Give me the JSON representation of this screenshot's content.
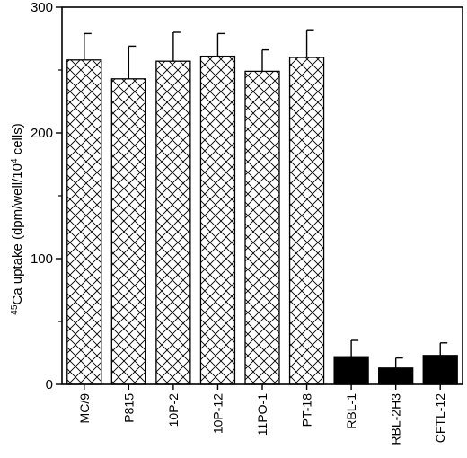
{
  "chart_data": {
    "type": "bar",
    "title": "",
    "xlabel": "",
    "ylabel": {
      "sup_mass": "45",
      "text_before": "Ca uptake (dpm/well/10",
      "sup_exp": "4",
      "text_after": " cells)"
    },
    "ylim": [
      0,
      300
    ],
    "yticks": [
      "0",
      "100",
      "200",
      "300"
    ],
    "categories": [
      "MC/9",
      "P815",
      "10P-2",
      "10P-12",
      "11PO-1",
      "PT-18",
      "RBL-1",
      "RBL-2H3",
      "CFTL-12"
    ],
    "values": [
      258,
      243,
      257,
      261,
      249,
      260,
      22,
      13,
      23
    ],
    "errors": [
      21,
      26,
      23,
      18,
      17,
      22,
      13,
      8,
      10
    ],
    "fill": [
      "hatch",
      "hatch",
      "hatch",
      "hatch",
      "hatch",
      "hatch",
      "solid",
      "solid",
      "solid"
    ],
    "grid": false,
    "legend": "none",
    "colors": {
      "axis": "#000000",
      "solid_bar": "#000000",
      "hatch_bar": "#ffffff"
    }
  }
}
